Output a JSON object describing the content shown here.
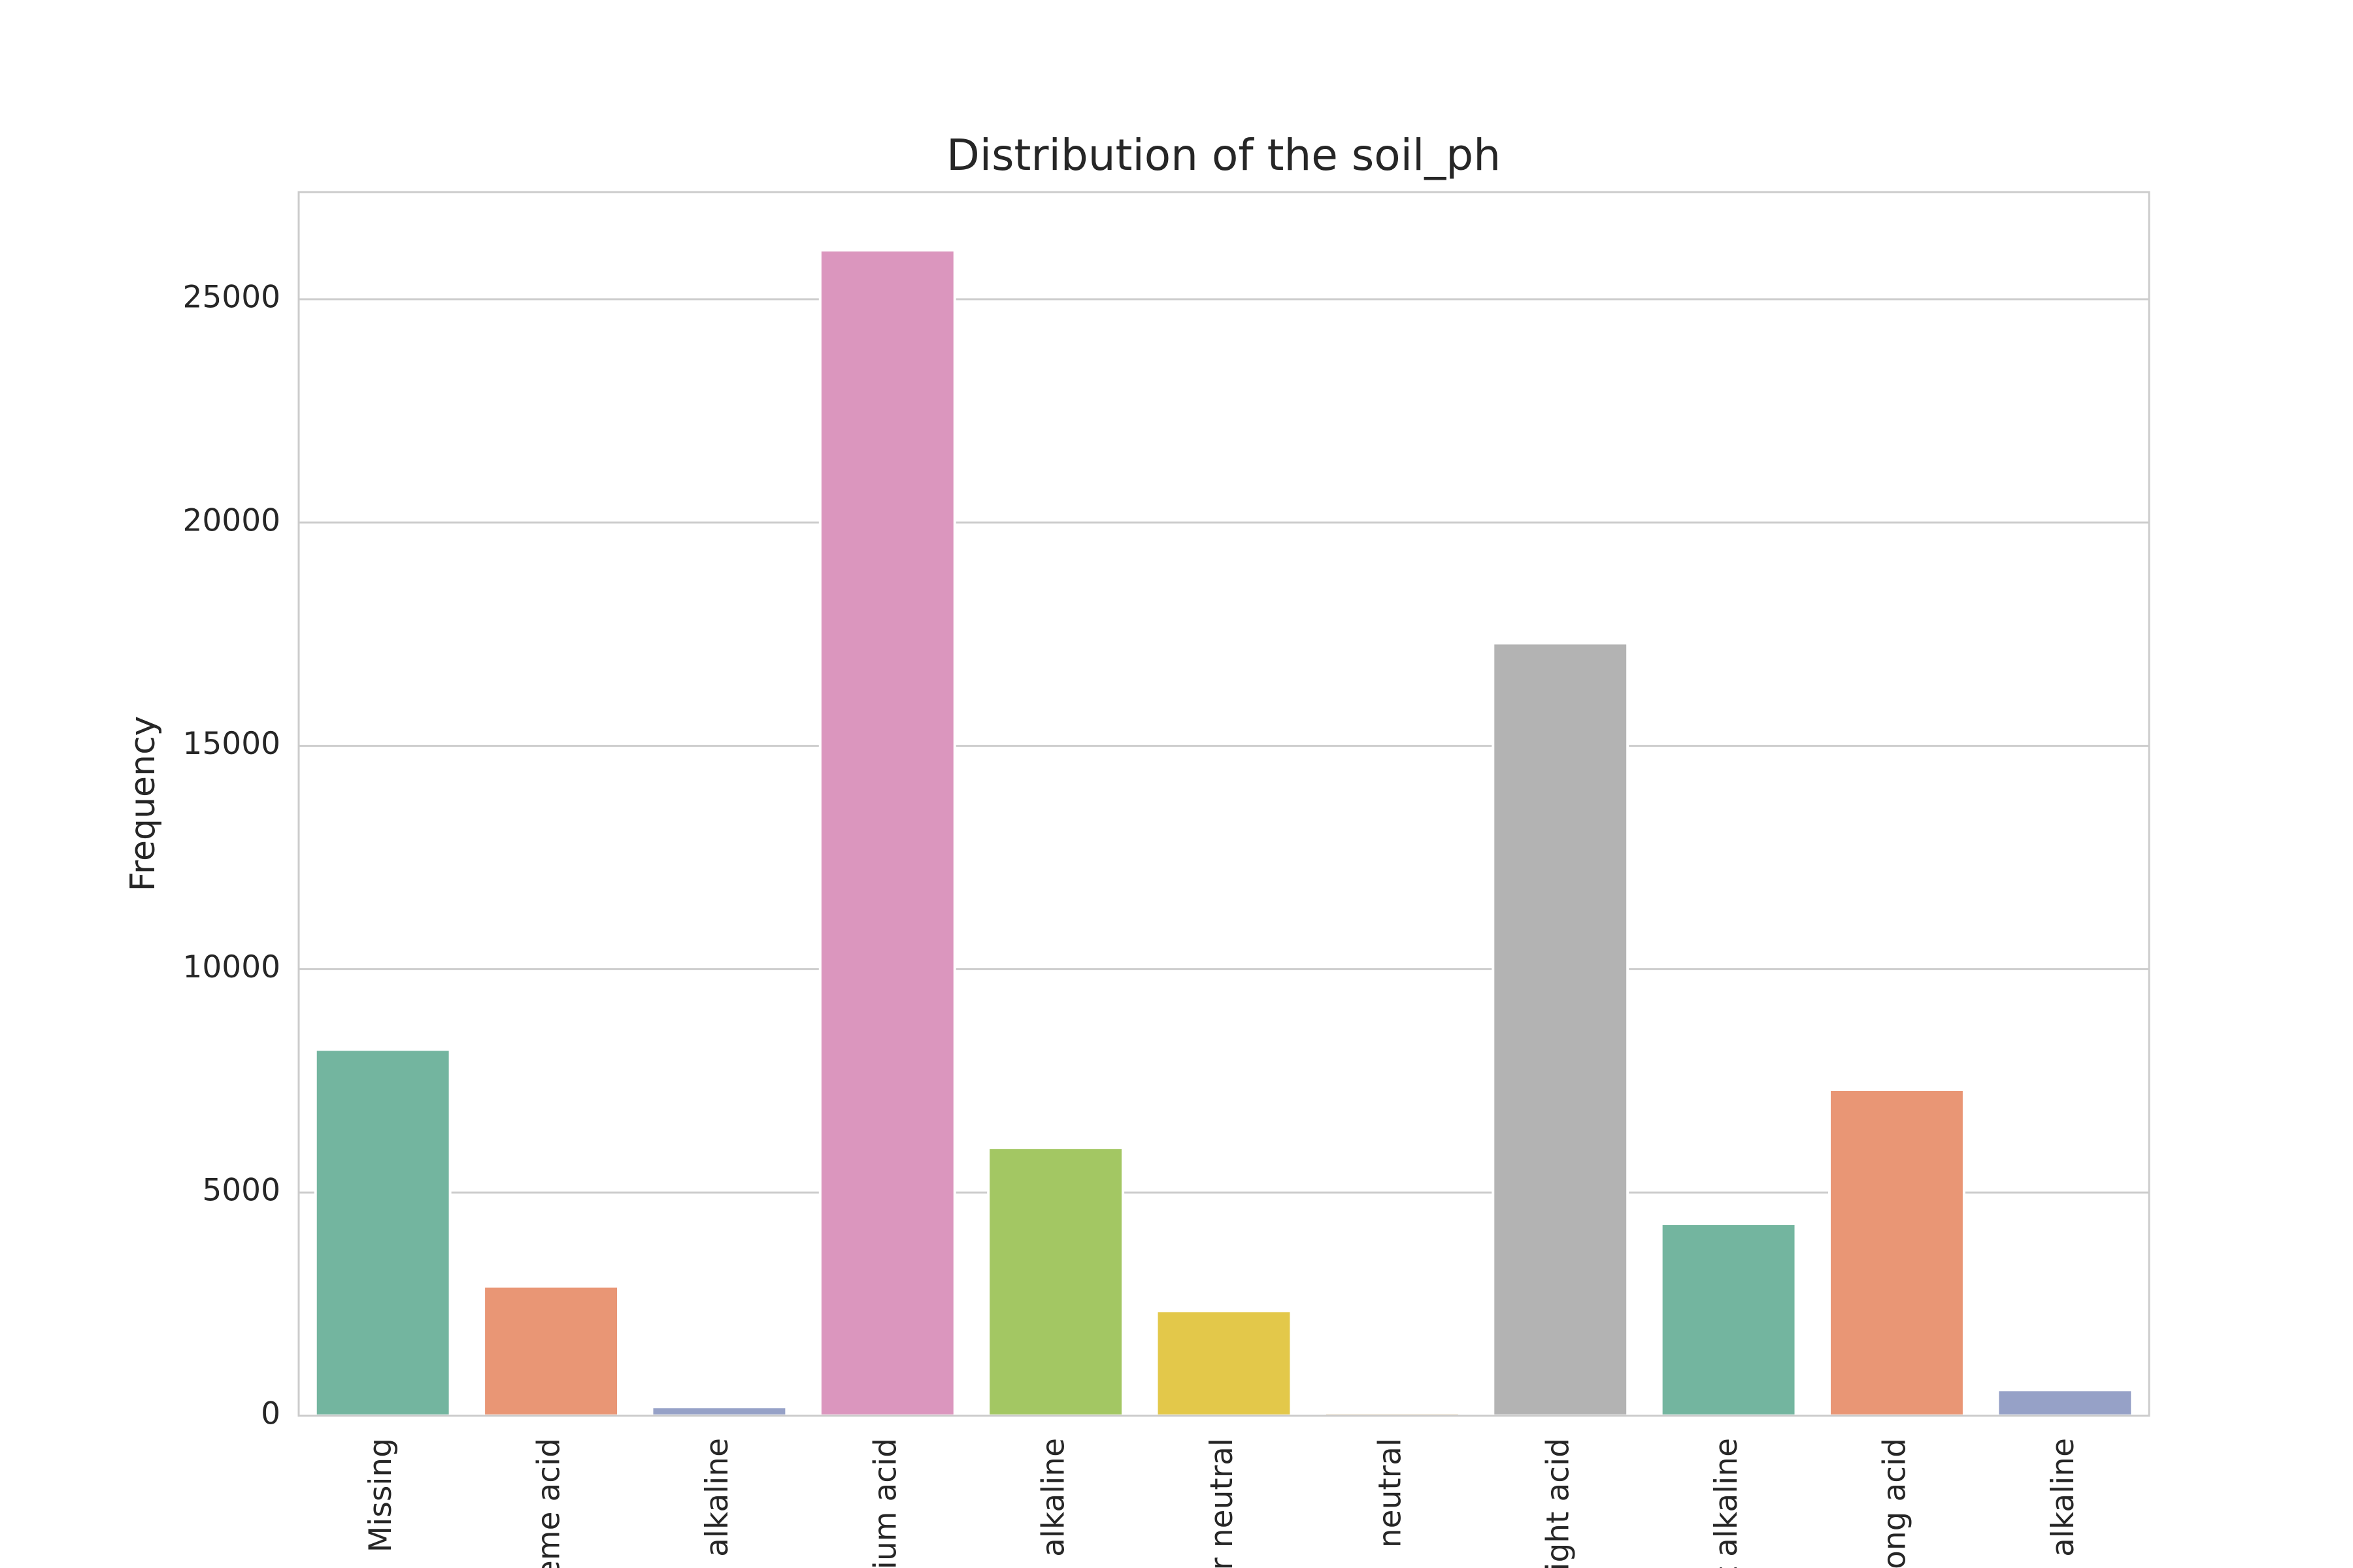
{
  "chart_data": {
    "type": "bar",
    "title": "Distribution of the soil_ph",
    "y_label": "Frequency",
    "categories": [
      "Missing",
      "reme acid",
      "e alkaline",
      "dium acid",
      "n alkaline",
      "ar neutral",
      "neutral",
      "light acid",
      "t alkaline",
      "rong acid",
      "g alkaline"
    ],
    "values": [
      8200,
      2900,
      200,
      26100,
      6000,
      2350,
      70,
      17300,
      4300,
      7300,
      580
    ],
    "colors": [
      "#73b59f",
      "#e99675",
      "#96a1c7",
      "#db96be",
      "#a3c763",
      "#e3c84a",
      "#e6d5b8",
      "#b3b3b3",
      "#73b59f",
      "#e99675",
      "#96a1c7"
    ],
    "ylim": [
      0,
      27400
    ],
    "yticks": [
      0,
      5000,
      10000,
      15000,
      20000,
      25000
    ],
    "grid": true
  }
}
